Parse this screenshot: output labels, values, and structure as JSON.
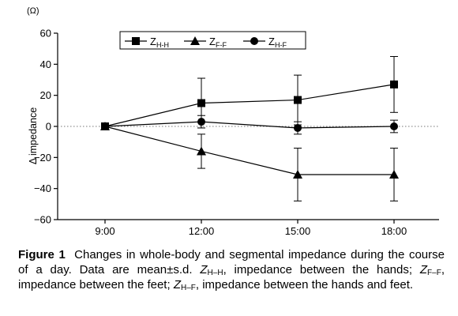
{
  "chart_data": {
    "type": "line",
    "unit": "(Ω)",
    "ylabel": "Δ impedance",
    "xlabel": "",
    "categories": [
      "9:00",
      "12:00",
      "15:00",
      "18:00"
    ],
    "ylim": [
      -60,
      60
    ],
    "yticks": [
      -60,
      -40,
      -20,
      0,
      20,
      40,
      60
    ],
    "ytick_labels": [
      "−60",
      "−40",
      "−20",
      "0",
      "20",
      "40",
      "60"
    ],
    "zero_line": "dotted",
    "legend_position": "top",
    "series": [
      {
        "name": "Z",
        "sub": "H-H",
        "marker": "square",
        "values": [
          0,
          15,
          17,
          27
        ],
        "errors": [
          0,
          16,
          16,
          18
        ]
      },
      {
        "name": "Z",
        "sub": "F-F",
        "marker": "triangle",
        "values": [
          0,
          -16,
          -31,
          -31
        ],
        "errors": [
          0,
          11,
          17,
          17
        ]
      },
      {
        "name": "Z",
        "sub": "H-F",
        "marker": "circle",
        "values": [
          0,
          3,
          -1,
          0
        ],
        "errors": [
          0,
          4,
          4,
          4
        ]
      }
    ]
  },
  "caption": {
    "label": "Figure 1",
    "p1": "Changes in whole-body and segmental impedance during the course of a day. Data are mean",
    "pm": "±",
    "p2": "s.d. ",
    "z1": "Z",
    "z1sub": "H–H",
    "p3": ", impedance between the hands; ",
    "z2": "Z",
    "z2sub": "F–F",
    "p4": ", impedance between the feet; ",
    "z3": "Z",
    "z3sub": "H–F",
    "p5": ", impedance between the hands and feet."
  }
}
